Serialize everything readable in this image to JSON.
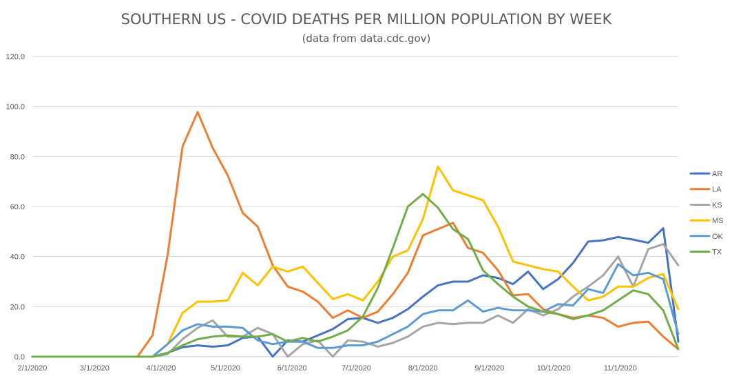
{
  "chart_data": {
    "type": "line",
    "title": "SOUTHERN US - COVID DEATHS PER MILLION POPULATION BY WEEK",
    "subtitle": "(data from data.cdc.gov)",
    "xlabel": "",
    "ylabel": "",
    "ylim": [
      0,
      120
    ],
    "y_ticks": [
      "0.0",
      "20.0",
      "40.0",
      "60.0",
      "80.0",
      "100.0",
      "120.0"
    ],
    "x_ticks": [
      {
        "label": "2/1/2020",
        "index": 0
      },
      {
        "label": "3/1/2020",
        "index": 4.14
      },
      {
        "label": "4/1/2020",
        "index": 8.57
      },
      {
        "label": "5/1/2020",
        "index": 12.86
      },
      {
        "label": "6/1/2020",
        "index": 17.29
      },
      {
        "label": "7/1/2020",
        "index": 21.57
      },
      {
        "label": "8/1/2020",
        "index": 26.0
      },
      {
        "label": "9/1/2020",
        "index": 30.43
      },
      {
        "label": "10/1/2020",
        "index": 34.71
      },
      {
        "label": "11/1/2020",
        "index": 39.14
      }
    ],
    "week_count": 44,
    "grid": "horizontal",
    "legend_position": "right",
    "series": [
      {
        "name": "AR",
        "color": "#4472c4",
        "values": [
          0,
          0,
          0,
          0,
          0,
          0,
          0,
          0,
          0,
          1.5,
          3.8,
          4.5,
          4.0,
          4.5,
          7.5,
          8.0,
          0,
          6.5,
          6.0,
          8.5,
          11.0,
          15.0,
          15.5,
          13.5,
          15.5,
          19.0,
          24.0,
          28.5,
          30.0,
          30.0,
          32.5,
          31.5,
          29.0,
          34.0,
          27.0,
          31.0,
          37.5,
          46.0,
          46.5,
          47.8,
          46.8,
          45.5,
          51.3,
          6.0
        ]
      },
      {
        "name": "LA",
        "color": "#ed7d31",
        "values": [
          0,
          0,
          0,
          0,
          0,
          0,
          0,
          0,
          8.5,
          40.5,
          84.0,
          97.8,
          83.5,
          72.5,
          57.5,
          52.0,
          36.5,
          28.0,
          26.0,
          22.0,
          15.5,
          18.5,
          15.5,
          18.0,
          25.0,
          33.5,
          48.5,
          51.0,
          53.5,
          43.5,
          41.5,
          34.5,
          24.5,
          25.0,
          19.0,
          17.0,
          15.5,
          16.5,
          15.5,
          12.0,
          13.5,
          14.0,
          8.0,
          3.0
        ]
      },
      {
        "name": "KS",
        "color": "#a5a5a5",
        "values": [
          0,
          0,
          0,
          0,
          0,
          0,
          0,
          0,
          0,
          1.0,
          7.0,
          11.5,
          14.5,
          8.0,
          8.0,
          11.5,
          9.0,
          0,
          5.0,
          6.5,
          0,
          6.5,
          6.0,
          4.0,
          5.5,
          8.0,
          12.0,
          13.5,
          13.0,
          13.5,
          13.5,
          16.5,
          13.5,
          19.0,
          16.5,
          19.0,
          24.0,
          28.0,
          32.5,
          40.0,
          28.0,
          43.0,
          45.0,
          36.5
        ]
      },
      {
        "name": "MS",
        "color": "#ffc000",
        "values": [
          0,
          0,
          0,
          0,
          0,
          0,
          0,
          0,
          0,
          5.0,
          17.5,
          22.0,
          22.0,
          22.5,
          33.5,
          28.5,
          36.0,
          34.0,
          36.0,
          29.5,
          23.0,
          25.0,
          22.5,
          30.0,
          40.0,
          42.5,
          55.0,
          76.0,
          66.5,
          64.5,
          62.5,
          52.0,
          38.0,
          36.5,
          35.0,
          34.0,
          28.0,
          22.5,
          24.0,
          28.0,
          28.0,
          31.5,
          33.0,
          19.0
        ]
      },
      {
        "name": "OK",
        "color": "#5b9bd5",
        "values": [
          0,
          0,
          0,
          0,
          0,
          0,
          0,
          0,
          0,
          5.0,
          10.5,
          13.0,
          12.0,
          12.0,
          11.5,
          6.5,
          5.0,
          6.0,
          6.0,
          3.5,
          3.5,
          4.5,
          4.5,
          6.0,
          9.0,
          12.0,
          17.0,
          18.5,
          18.5,
          22.5,
          18.0,
          19.5,
          18.5,
          18.5,
          18.0,
          21.0,
          20.5,
          27.0,
          25.5,
          37.0,
          32.5,
          33.5,
          31.0,
          9.0
        ]
      },
      {
        "name": "TX",
        "color": "#70ad47",
        "values": [
          0,
          0,
          0,
          0,
          0,
          0,
          0,
          0,
          0,
          1.5,
          4.5,
          7.0,
          8.0,
          8.5,
          8.0,
          8.0,
          9.0,
          6.0,
          7.5,
          6.0,
          8.0,
          10.5,
          16.0,
          27.5,
          43.5,
          60.0,
          65.0,
          59.5,
          51.0,
          47.0,
          34.5,
          29.0,
          24.0,
          20.0,
          18.0,
          17.0,
          15.0,
          16.5,
          18.5,
          22.5,
          26.5,
          25.0,
          18.5,
          3.0
        ]
      }
    ]
  }
}
